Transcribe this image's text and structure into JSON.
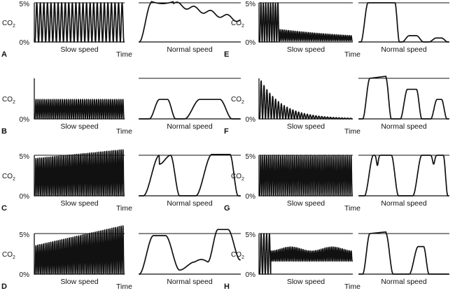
{
  "labels": {
    "co2": "CO",
    "co2_sub": "2",
    "five_percent": "5%",
    "zero_percent": "0%",
    "slow_speed": "Slow speed",
    "normal_speed": "Normal speed",
    "time": "Time"
  },
  "panels": [
    {
      "id": "A",
      "letter": "A",
      "show_five": true,
      "show_zero": true
    },
    {
      "id": "B",
      "letter": "B",
      "show_five": false,
      "show_zero": true
    },
    {
      "id": "C",
      "letter": "C",
      "show_five": true,
      "show_zero": true
    },
    {
      "id": "D",
      "letter": "D",
      "show_five": true,
      "show_zero": true
    },
    {
      "id": "E",
      "letter": "E",
      "show_five": true,
      "show_zero": true
    },
    {
      "id": "F",
      "letter": "F",
      "show_five": false,
      "show_zero": true
    },
    {
      "id": "G",
      "letter": "G",
      "show_five": true,
      "show_zero": true
    },
    {
      "id": "H",
      "letter": "H",
      "show_five": true,
      "show_zero": true
    }
  ],
  "colors": {
    "ink": "#111111",
    "background": "#ffffff"
  }
}
